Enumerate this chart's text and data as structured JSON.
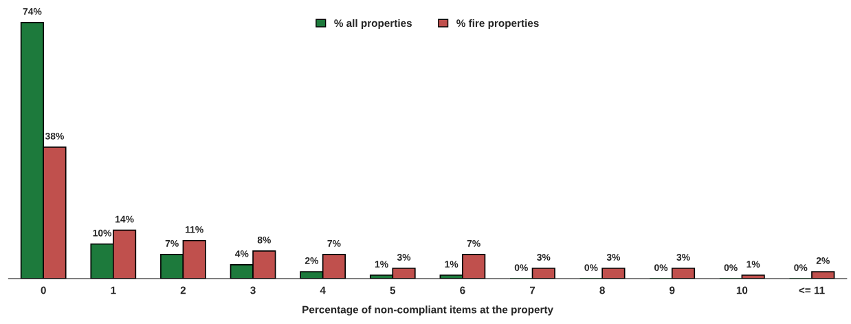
{
  "chart_data": {
    "type": "bar",
    "xlabel": "Percentage of non-compliant items at the property",
    "categories": [
      "0",
      "1",
      "2",
      "3",
      "4",
      "5",
      "6",
      "7",
      "8",
      "9",
      "10",
      "<= 11"
    ],
    "series": [
      {
        "name": "% all properties",
        "color": "#1d7a3c",
        "values": [
          74,
          10,
          7,
          4,
          2,
          1,
          1,
          0,
          0,
          0,
          0,
          0
        ],
        "value_labels": [
          "74%",
          "10%",
          "7%",
          "4%",
          "2%",
          "1%",
          "1%",
          "0%",
          "0%",
          "0%",
          "0%",
          "0%"
        ]
      },
      {
        "name": "% fire properties",
        "color": "#c0504d",
        "values": [
          38,
          14,
          11,
          8,
          7,
          3,
          7,
          3,
          3,
          3,
          1,
          2
        ],
        "value_labels": [
          "38%",
          "14%",
          "11%",
          "8%",
          "7%",
          "3%",
          "7%",
          "3%",
          "3%",
          "3%",
          "1%",
          "2%"
        ]
      }
    ],
    "legend": "top",
    "grid": false
  }
}
